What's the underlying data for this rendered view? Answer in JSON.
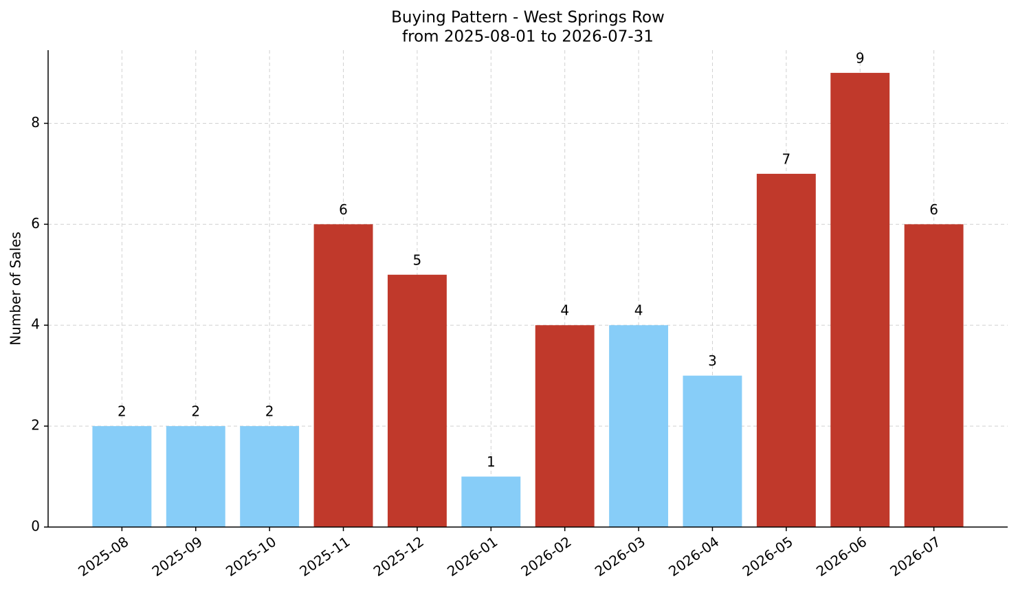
{
  "chart_data": {
    "type": "bar",
    "title": "Buying Pattern - West Springs Row",
    "subtitle": "from 2025-08-01 to 2026-07-31",
    "y_label": "Number of Sales",
    "categories": [
      "2025-08",
      "2025-09",
      "2025-10",
      "2025-11",
      "2025-12",
      "2026-01",
      "2026-02",
      "2026-03",
      "2026-04",
      "2026-05",
      "2026-06",
      "2026-07"
    ],
    "values": [
      2,
      2,
      2,
      6,
      5,
      1,
      4,
      4,
      3,
      7,
      9,
      6
    ],
    "colors": [
      "#87cdf8",
      "#87cdf8",
      "#87cdf8",
      "#c0392b",
      "#c0392b",
      "#87cdf8",
      "#c0392b",
      "#87cdf8",
      "#87cdf8",
      "#c0392b",
      "#c0392b",
      "#c0392b"
    ],
    "ylim": [
      0,
      9.45
    ],
    "yticks": [
      0,
      2,
      4,
      6,
      8
    ],
    "grid": true
  }
}
